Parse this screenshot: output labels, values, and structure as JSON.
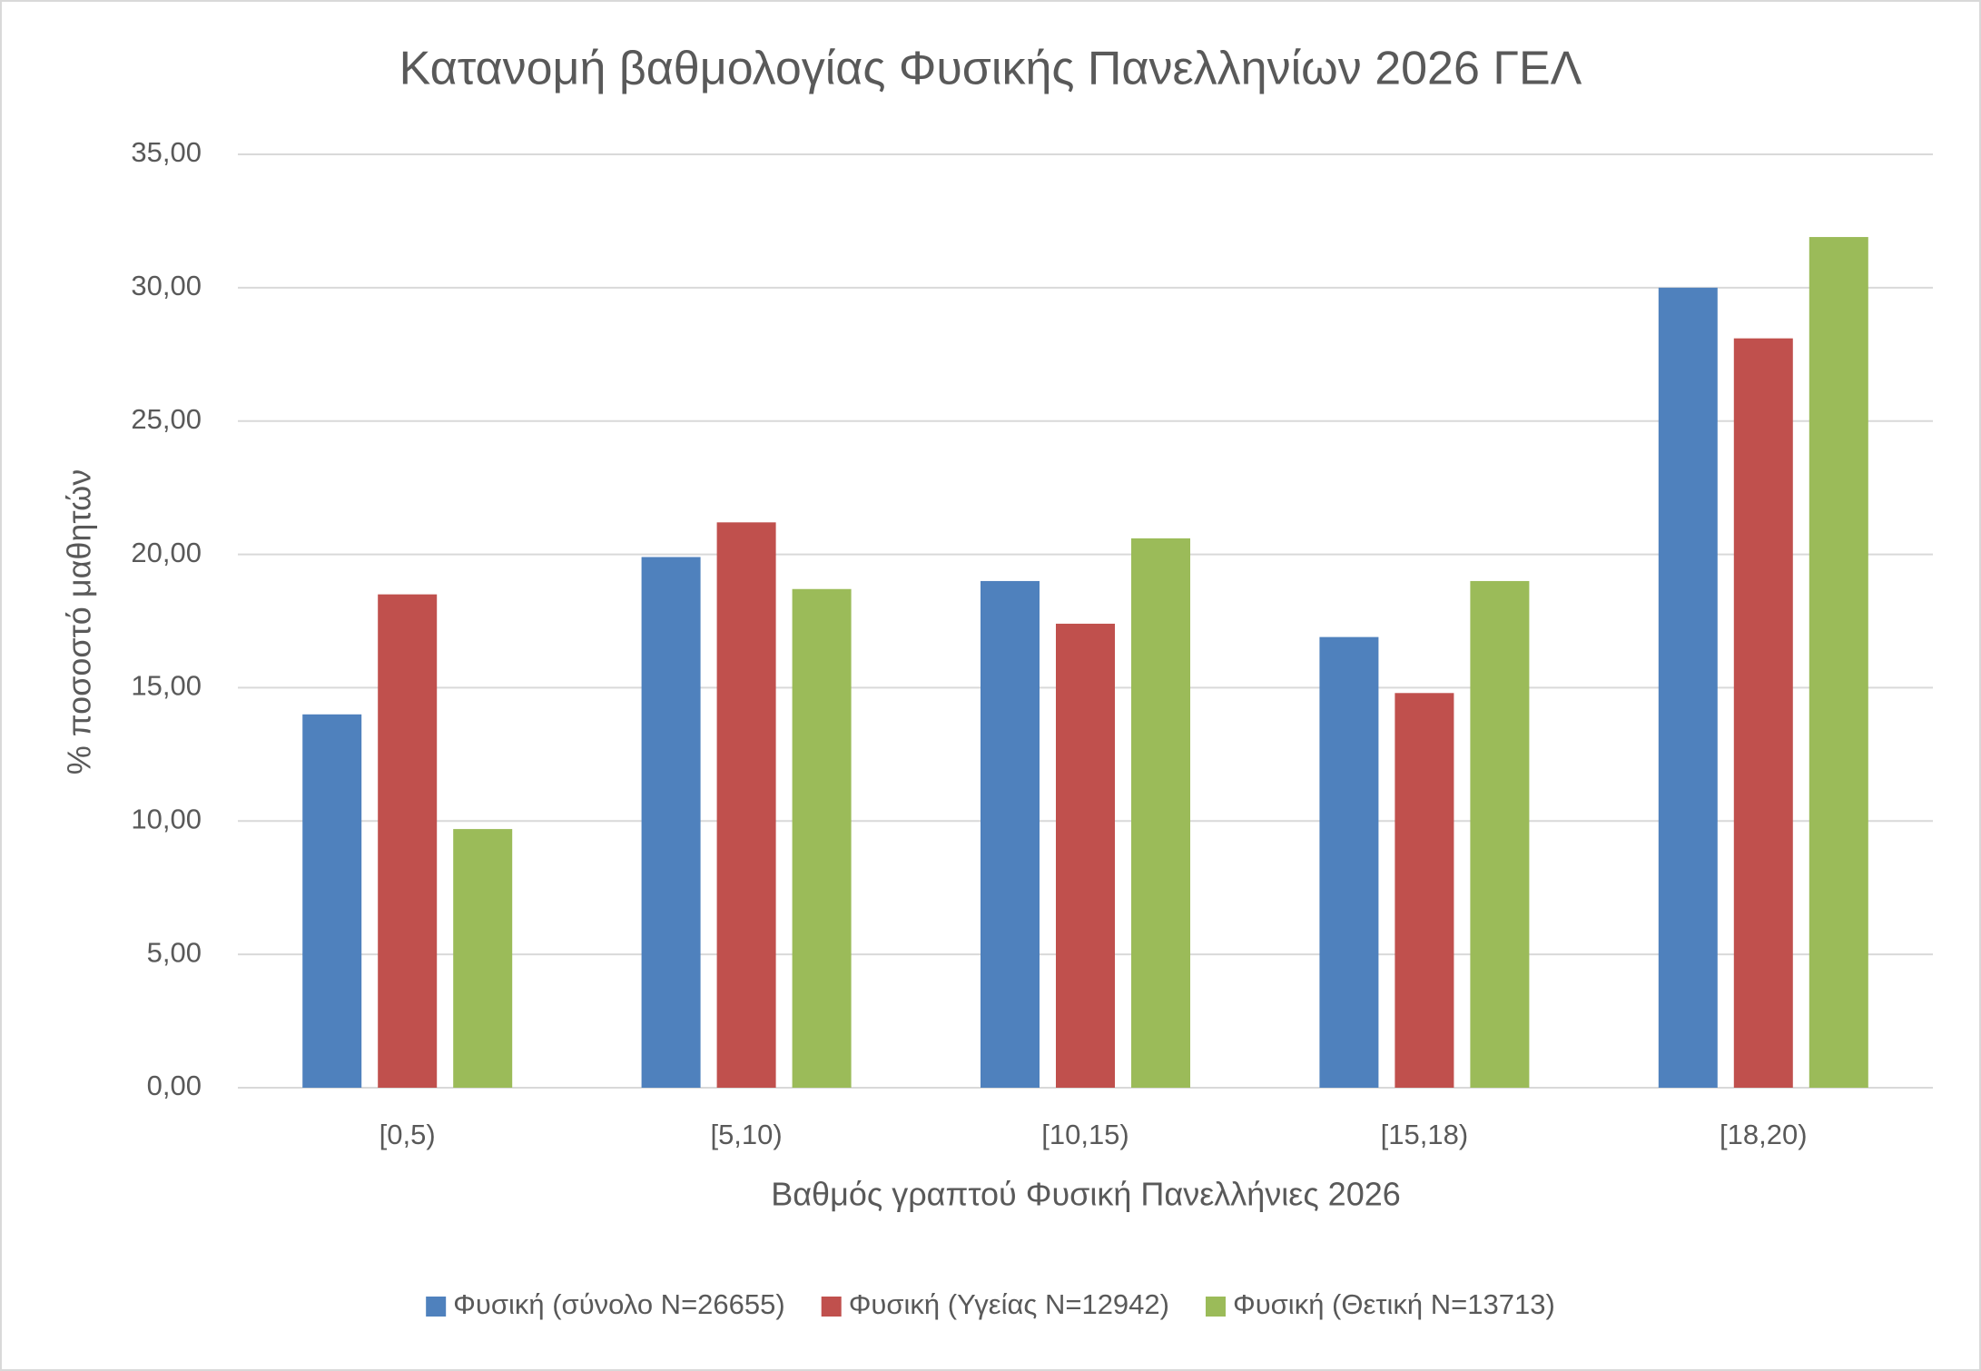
{
  "chart_data": {
    "type": "bar",
    "title": "Κατανομή βαθμολογίας Φυσικής Πανελληνίων 2026 ΓΕΛ",
    "x_label": "Βαθμός γραπτού Φυσική Πανελλήνιες 2026",
    "y_label": "% ποσοστό μαθητών",
    "categories": [
      "[0,5)",
      "[5,10)",
      "[10,15)",
      "[15,18)",
      "[18,20)"
    ],
    "series": [
      {
        "name": "Φυσική (σύνολο N=26655)",
        "color": "#4f81bd",
        "values": [
          14.0,
          19.9,
          19.0,
          16.9,
          30.0
        ]
      },
      {
        "name": "Φυσική (Υγείας N=12942)",
        "color": "#c0504d",
        "values": [
          18.5,
          21.2,
          17.4,
          14.8,
          28.1
        ]
      },
      {
        "name": "Φυσική (Θετική N=13713)",
        "color": "#9bbb59",
        "values": [
          9.7,
          18.7,
          20.6,
          19.0,
          31.9
        ]
      }
    ],
    "ylim": [
      0,
      35
    ],
    "yticks": [
      {
        "value": 0,
        "label": "0,00"
      },
      {
        "value": 5,
        "label": "5,00"
      },
      {
        "value": 10,
        "label": "10,00"
      },
      {
        "value": 15,
        "label": "15,00"
      },
      {
        "value": 20,
        "label": "20,00"
      },
      {
        "value": 25,
        "label": "25,00"
      },
      {
        "value": 30,
        "label": "30,00"
      },
      {
        "value": 35,
        "label": "35,00"
      }
    ],
    "grid": true,
    "legend": "bottom"
  }
}
